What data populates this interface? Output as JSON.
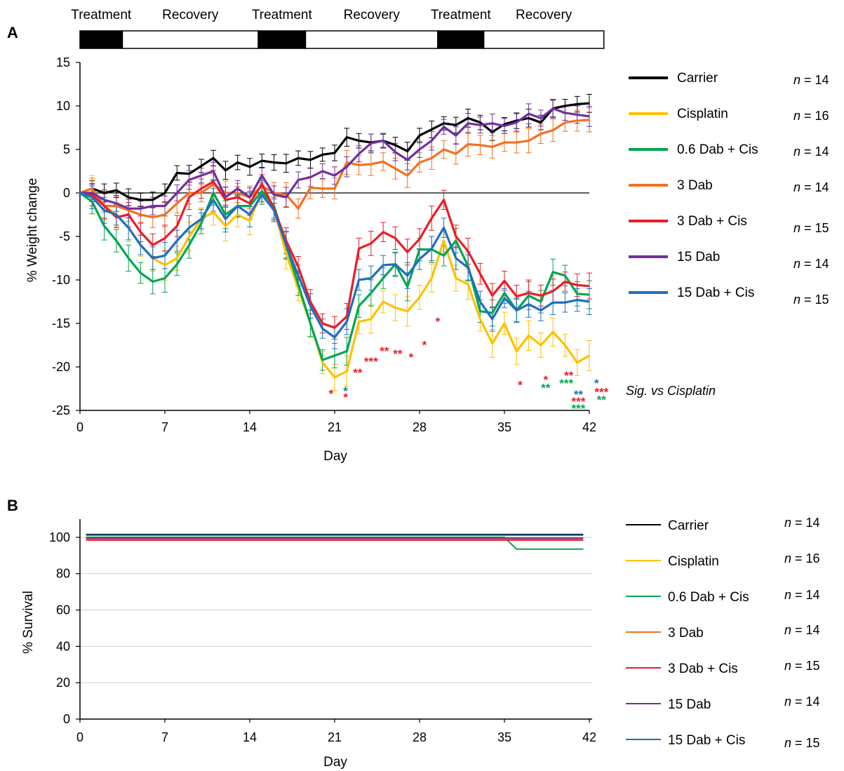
{
  "colors": {
    "Carrier": "#000000",
    "Cisplatin": "#FFC000",
    "0.6 Dab + Cis": "#00A651",
    "3 Dab": "#F37021",
    "3 Dab + Cis": "#ED1C24",
    "15 Dab": "#7030A0",
    "15 Dab + Cis": "#1F6FC0"
  },
  "chart_data": [
    {
      "type": "line",
      "panel_label": "A",
      "ylabel": "% Weight change",
      "xlabel": "Day",
      "xlim": [
        0,
        42
      ],
      "ylim": [
        -25,
        15
      ],
      "xticks": [
        0,
        7,
        14,
        21,
        28,
        35,
        42
      ],
      "yticks": [
        15,
        10,
        5,
        0,
        -5,
        -10,
        -15,
        -20,
        -25
      ],
      "phases": [
        {
          "label": "Treatment",
          "start": 0,
          "end": 3.5,
          "filled": true
        },
        {
          "label": "Recovery",
          "start": 3.5,
          "end": 14.7,
          "filled": false
        },
        {
          "label": "Treatment",
          "start": 14.7,
          "end": 18.6,
          "filled": true
        },
        {
          "label": "Recovery",
          "start": 18.6,
          "end": 29.5,
          "filled": false
        },
        {
          "label": "Treatment",
          "start": 29.5,
          "end": 33.3,
          "filled": true
        },
        {
          "label": "Recovery",
          "start": 33.3,
          "end": 43.2,
          "filled": false
        }
      ],
      "significance_title": "Sig. vs Cisplatin",
      "x": [
        0,
        1,
        2,
        3,
        4,
        5,
        6,
        7,
        8,
        9,
        10,
        11,
        12,
        13,
        14,
        15,
        16,
        17,
        18,
        19,
        20,
        21,
        22,
        23,
        24,
        25,
        26,
        27,
        28,
        29,
        30,
        31,
        32,
        33,
        34,
        35,
        36,
        37,
        38,
        39,
        40,
        41,
        42
      ],
      "series": [
        {
          "name": "Carrier",
          "n": "n = 14",
          "err": 0.9,
          "values": [
            0,
            0.5,
            0,
            0.3,
            -0.5,
            -0.8,
            -0.8,
            0,
            2.3,
            2.2,
            3.1,
            4,
            2.6,
            3.5,
            3.0,
            3.7,
            3.5,
            3.4,
            4.0,
            3.8,
            4.4,
            4.6,
            6.4,
            6.0,
            5.8,
            6.0,
            5.5,
            4.8,
            6.6,
            7.3,
            8.0,
            7.8,
            8.6,
            8.1,
            7.0,
            7.9,
            8.3,
            8.6,
            8.1,
            9.7,
            10.0,
            10.2,
            10.3
          ]
        },
        {
          "name": "Cisplatin",
          "n": "n = 16",
          "err": 1.5,
          "values": [
            0,
            0.5,
            -1.5,
            -2.5,
            -4,
            -6,
            -7.5,
            -8.3,
            -7.5,
            -5,
            -3,
            -2.2,
            -3.8,
            -2.5,
            -3.2,
            0.2,
            -1.8,
            -7,
            -11,
            -15,
            -19.5,
            -21.2,
            -20.5,
            -14.8,
            -14.5,
            -12.5,
            -13.2,
            -13.6,
            -12,
            -9.8,
            -5.5,
            -9.8,
            -10.5,
            -14.5,
            -17.3,
            -15,
            -18.2,
            -16.4,
            -17.5,
            -16,
            -17.5,
            -19.5,
            -18.7
          ]
        },
        {
          "name": "0.6 Dab + Cis",
          "n": "n = 14",
          "err": 1.4,
          "values": [
            0,
            -1,
            -3.8,
            -5.5,
            -7.5,
            -9.2,
            -10.2,
            -9.8,
            -8.2,
            -6,
            -3.5,
            0,
            -2.5,
            -1.5,
            -1.5,
            0.2,
            -1.5,
            -6,
            -10.5,
            -15,
            -19.2,
            -18.7,
            -18.2,
            -13,
            -11.5,
            -9.8,
            -8.2,
            -10.8,
            -6.5,
            -6.5,
            -7.2,
            -5.5,
            -8.4,
            -13.6,
            -13.8,
            -11.5,
            -13.5,
            -11.8,
            -12.5,
            -9.1,
            -9.5,
            -11.6,
            -11.7
          ]
        },
        {
          "name": "3 Dab",
          "n": "n = 14",
          "err": 1.2,
          "values": [
            0,
            0.5,
            -1.5,
            -1.5,
            -2,
            -2.5,
            -2.8,
            -2.5,
            -1.2,
            0,
            0,
            1,
            0,
            0,
            -0.5,
            0.8,
            0,
            -0.2,
            -1.8,
            0.6,
            0.5,
            0.5,
            3.5,
            3.2,
            3.3,
            3.6,
            2.8,
            2.0,
            3.5,
            4.0,
            5.0,
            4.5,
            5.6,
            5.5,
            5.3,
            5.8,
            5.8,
            6.0,
            6.8,
            7.2,
            8.1,
            8.3,
            8.4
          ]
        },
        {
          "name": "3 Dab + Cis",
          "n": "n = 15",
          "err": 1.3,
          "values": [
            0,
            -0.2,
            -1.5,
            -2.8,
            -2.5,
            -4.5,
            -6,
            -5.2,
            -3.8,
            -0.5,
            0.5,
            1.3,
            -0.8,
            -0.5,
            -1.2,
            1,
            -1.8,
            -5.5,
            -8.5,
            -12.5,
            -15,
            -15.5,
            -14.2,
            -6.4,
            -5.8,
            -4.5,
            -5.2,
            -6.8,
            -5.3,
            -2.9,
            -0.8,
            -5,
            -6.7,
            -9.3,
            -11.8,
            -10.1,
            -11.9,
            -11.5,
            -11.8,
            -11.3,
            -10.2,
            -10.6,
            -10.7
          ]
        },
        {
          "name": "15 Dab",
          "n": "n = 14",
          "err": 1.0,
          "values": [
            0,
            0,
            -0.8,
            -1.2,
            -1.8,
            -1.8,
            -1.5,
            -1.5,
            0,
            1.5,
            2,
            2.5,
            -0.5,
            0.5,
            -0.5,
            2,
            -0.2,
            -0.5,
            1.5,
            1.8,
            2.5,
            2,
            3,
            4.5,
            5.7,
            6.0,
            4.7,
            3.8,
            5.0,
            6.0,
            7.6,
            6.6,
            8,
            7.8,
            8.0,
            7.7,
            8.1,
            9.1,
            8.6,
            9.7,
            9.2,
            9.0,
            8.8
          ]
        },
        {
          "name": "15 Dab + Cis",
          "n": "n = 15",
          "err": 1.3,
          "values": [
            0,
            -0.5,
            -2,
            -2.5,
            -4,
            -6,
            -7.5,
            -7.2,
            -5.5,
            -4,
            -3,
            -0.8,
            -3.0,
            -1.5,
            -2.5,
            -0.2,
            -2,
            -6,
            -9.5,
            -13,
            -15.6,
            -16.6,
            -14.8,
            -10,
            -9.8,
            -8.3,
            -8.2,
            -9.5,
            -7.6,
            -6.4,
            -4,
            -7.5,
            -8.6,
            -12.5,
            -14.5,
            -12.1,
            -13.5,
            -12.8,
            -13.5,
            -12.6,
            -12.6,
            -12.3,
            -12.5
          ]
        }
      ],
      "significance": [
        {
          "x": 20.7,
          "row": 0,
          "text": "*",
          "color": "red"
        },
        {
          "x": 21.9,
          "row": 0,
          "text": "*",
          "color": "blue"
        },
        {
          "x": 21.9,
          "row": 1,
          "text": "*",
          "color": "red"
        },
        {
          "x": 22.9,
          "y": -20.5,
          "text": "**",
          "color": "red"
        },
        {
          "x": 24.0,
          "y": -19.2,
          "text": "***",
          "color": "red"
        },
        {
          "x": 25.1,
          "y": -18.0,
          "text": "**",
          "color": "red"
        },
        {
          "x": 26.2,
          "y": -18.3,
          "text": "**",
          "color": "red"
        },
        {
          "x": 27.3,
          "y": -18.7,
          "text": "*",
          "color": "red"
        },
        {
          "x": 28.4,
          "y": -17.3,
          "text": "*",
          "color": "red"
        },
        {
          "x": 29.5,
          "y": -14.6,
          "text": "*",
          "color": "red"
        },
        {
          "x": 36.3,
          "y": -21.9,
          "text": "*",
          "color": "red"
        },
        {
          "x": 38.4,
          "y": -21.3,
          "text": "*",
          "color": "red"
        },
        {
          "x": 38.4,
          "y": -22.2,
          "text": "**",
          "color": "green"
        },
        {
          "x": 40.3,
          "y": -20.8,
          "text": "**",
          "color": "red"
        },
        {
          "x": 40.1,
          "y": -21.7,
          "text": "***",
          "color": "green"
        },
        {
          "x": 41.1,
          "y": -23.0,
          "text": "**",
          "color": "blue"
        },
        {
          "x": 41.1,
          "y": -23.8,
          "text": "***",
          "color": "red"
        },
        {
          "x": 41.1,
          "y": -24.6,
          "text": "***",
          "color": "green"
        },
        {
          "x": 42.6,
          "y": -21.7,
          "text": "*",
          "color": "blue"
        },
        {
          "x": 43.0,
          "y": -22.7,
          "text": "***",
          "color": "red"
        },
        {
          "x": 43.0,
          "y": -23.6,
          "text": "**",
          "color": "green"
        }
      ]
    },
    {
      "type": "line",
      "panel_label": "B",
      "ylabel": "% Survival",
      "xlabel": "Day",
      "xlim": [
        0,
        42
      ],
      "ylim": [
        0,
        110
      ],
      "xticks": [
        0,
        7,
        14,
        21,
        28,
        35,
        42
      ],
      "yticks": [
        0,
        20,
        40,
        60,
        80,
        100
      ],
      "grid": true,
      "series": [
        {
          "name": "Carrier",
          "n": "n = 14",
          "x": [
            0.5,
            41.5
          ],
          "values": [
            100,
            100
          ]
        },
        {
          "name": "Cisplatin",
          "n": "n = 16",
          "x": [
            0.5,
            41.5
          ],
          "values": [
            100,
            100
          ]
        },
        {
          "name": "0.6 Dab + Cis",
          "n": "n = 14",
          "x": [
            0.5,
            35,
            36,
            41.5
          ],
          "values": [
            100,
            100,
            93.5,
            93.5
          ]
        },
        {
          "name": "3 Dab",
          "n": "n = 14",
          "x": [
            0.5,
            41.5
          ],
          "values": [
            100,
            100
          ]
        },
        {
          "name": "3 Dab + Cis",
          "n": "n = 15",
          "x": [
            0.5,
            41.5
          ],
          "values": [
            100,
            100
          ]
        },
        {
          "name": "15 Dab",
          "n": "n = 14",
          "x": [
            0.5,
            41.5
          ],
          "values": [
            100,
            100
          ]
        },
        {
          "name": "15 Dab + Cis",
          "n": "n = 15",
          "x": [
            0.5,
            41.5
          ],
          "values": [
            100,
            100
          ]
        }
      ]
    }
  ]
}
